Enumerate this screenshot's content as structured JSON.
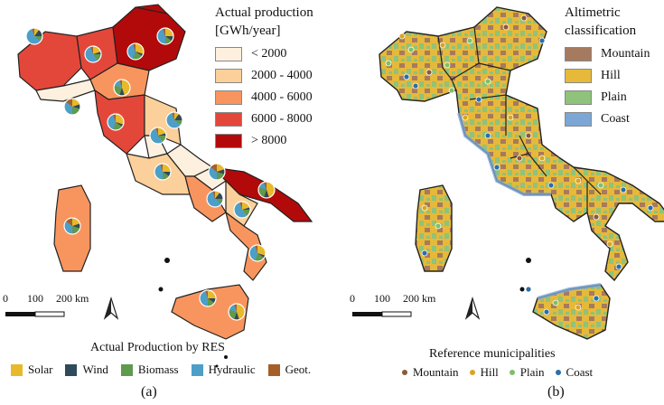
{
  "panel_a": {
    "legend_title_line1": "Actual production",
    "legend_title_line2": "[GWh/year]",
    "classes": [
      {
        "label": "< 2000",
        "color": "#fdf0de"
      },
      {
        "label": "2000 - 4000",
        "color": "#fcd09a"
      },
      {
        "label": "4000 - 6000",
        "color": "#f8955e"
      },
      {
        "label": "6000 - 8000",
        "color": "#e3473a"
      },
      {
        "label": "> 8000",
        "color": "#b20a0a"
      }
    ],
    "scale_labels": [
      "0",
      "100",
      "200 km"
    ],
    "res_title": "Actual Production by RES",
    "res_items": [
      {
        "label": "Solar",
        "color": "#e8b92a"
      },
      {
        "label": "Wind",
        "color": "#2f4a5a"
      },
      {
        "label": "Biomass",
        "color": "#5f9a4d"
      },
      {
        "label": "Hydraulic",
        "color": "#4d9fc8"
      },
      {
        "label": "Geot.",
        "color": "#a5602a"
      }
    ],
    "caption": "(a)"
  },
  "panel_b": {
    "legend_title_line1": "Altimetric",
    "legend_title_line2": "classification",
    "classes": [
      {
        "label": "Mountain",
        "color": "#a67a5e"
      },
      {
        "label": "Hill",
        "color": "#e6b93a"
      },
      {
        "label": "Plain",
        "color": "#8fc27a"
      },
      {
        "label": "Coast",
        "color": "#7ba6d6"
      }
    ],
    "scale_labels": [
      "0",
      "100",
      "200 km"
    ],
    "mun_title": "Reference municipalities",
    "mun_items": [
      {
        "label": "Mountain",
        "color": "#8a5a3c"
      },
      {
        "label": "Hill",
        "color": "#d9a520"
      },
      {
        "label": "Plain",
        "color": "#7cc06a"
      },
      {
        "label": "Coast",
        "color": "#2a6ea8"
      }
    ],
    "caption": "(b)"
  }
}
